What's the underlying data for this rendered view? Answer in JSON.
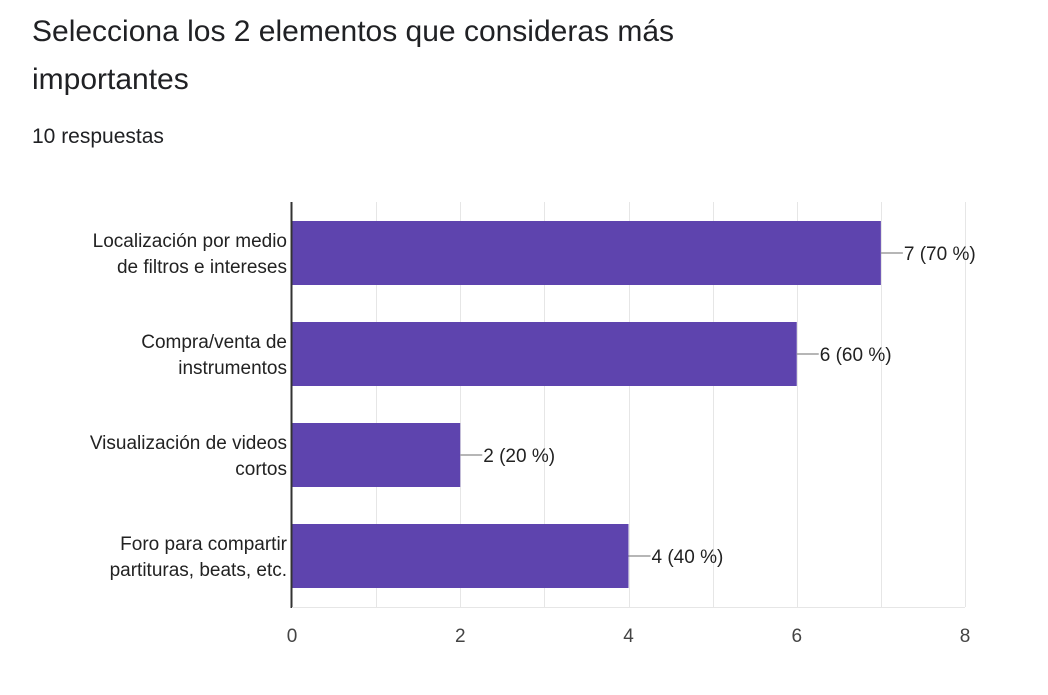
{
  "question": {
    "title": "Selecciona los 2 elementos que consideras más importantes",
    "responses": "10 respuestas"
  },
  "colors": {
    "bar": "#5e44ae",
    "grid": "#e6e6e6",
    "axis": "#333333",
    "leader": "#9e9e9e"
  },
  "chart_data": {
    "type": "bar",
    "orientation": "horizontal",
    "categories": [
      [
        "Localización por medio",
        "de filtros e intereses"
      ],
      [
        "Compra/venta de",
        "instrumentos"
      ],
      [
        "Visualización de videos",
        "cortos"
      ],
      [
        "Foro para compartir",
        "partituras, beats, etc."
      ]
    ],
    "values": [
      7,
      6,
      2,
      4
    ],
    "data_labels": [
      "7 (70 %)",
      "6 (60 %)",
      "2 (20 %)",
      "4 (40 %)"
    ],
    "xlim": [
      0,
      8
    ],
    "xticks": [
      "0",
      "2",
      "4",
      "6",
      "8"
    ],
    "grid": true,
    "legend": "none"
  }
}
